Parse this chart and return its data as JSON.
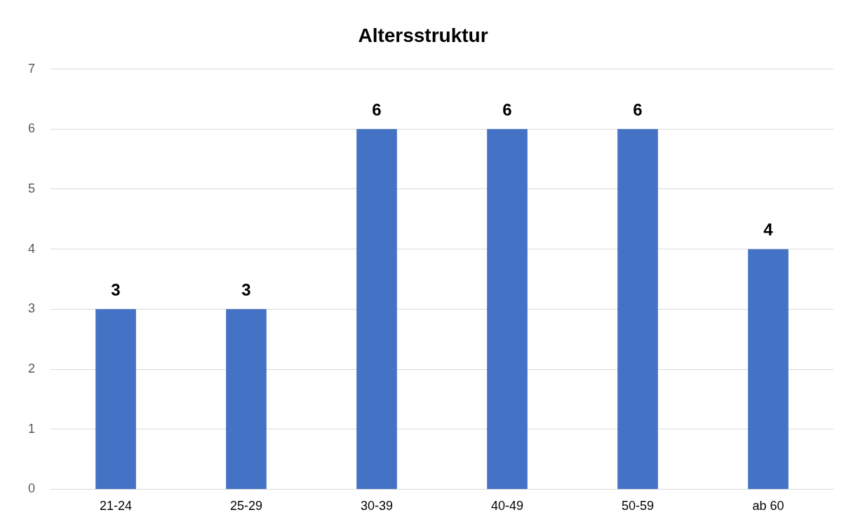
{
  "chart_data": {
    "type": "bar",
    "title": "Altersstruktur",
    "categories": [
      "21-24",
      "25-29",
      "30-39",
      "40-49",
      "50-59",
      "ab 60"
    ],
    "values": [
      3,
      3,
      6,
      6,
      6,
      4
    ],
    "color": "#4472c4",
    "ylim": [
      0,
      7
    ],
    "yticks": [
      0,
      1,
      2,
      3,
      4,
      5,
      6,
      7
    ],
    "grid": "y",
    "data_labels": true
  }
}
